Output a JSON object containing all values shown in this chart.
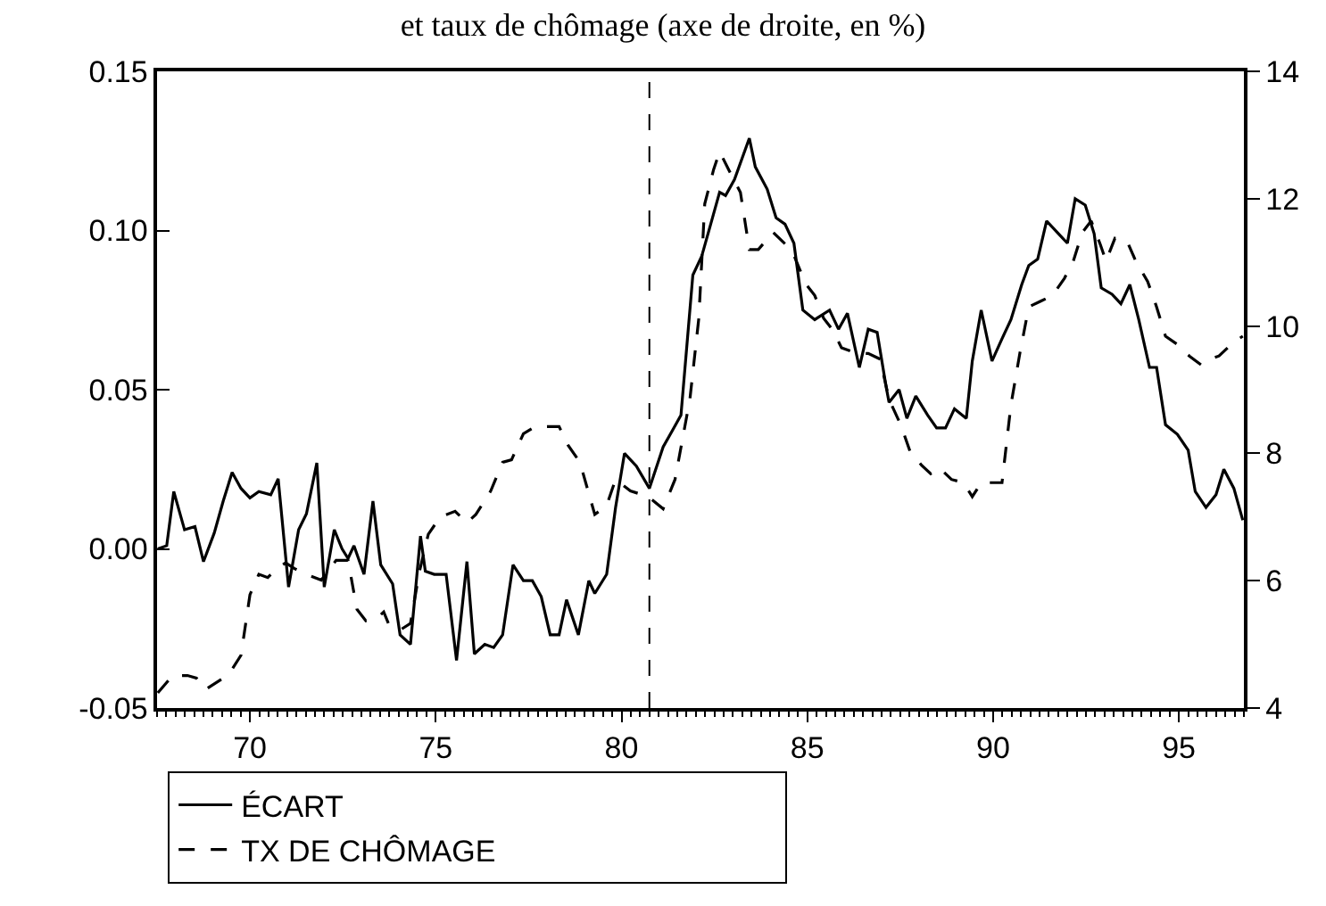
{
  "chart_data": {
    "type": "line",
    "title": "et taux de chômage (axe de droite, en %)",
    "xlim": [
      67.5,
      96.75
    ],
    "xticks": [
      70,
      75,
      80,
      85,
      90,
      95
    ],
    "ylim": [
      -0.05,
      0.15
    ],
    "yticks": [
      {
        "value": -0.05,
        "label": "-0.05"
      },
      {
        "value": 0,
        "label": "0.00"
      },
      {
        "value": 0.05,
        "label": "0.05"
      },
      {
        "value": 0.1,
        "label": "0.10"
      },
      {
        "value": 0.15,
        "label": "0.15"
      }
    ],
    "y2lim": [
      4,
      14
    ],
    "y2ticks": [
      4,
      6,
      8,
      10,
      12,
      14
    ],
    "grid": false,
    "legend": "bottom",
    "ref_lines": [
      {
        "axis": "x",
        "value": 80.75,
        "color": "#000000",
        "line_style": "dashed"
      }
    ],
    "series": [
      {
        "name": "ÉCART",
        "color": "#000000",
        "line_style": "solid",
        "axis": "y",
        "x": [
          67.52,
          67.76,
          67.95,
          68.24,
          68.52,
          68.75,
          69.04,
          69.28,
          69.52,
          69.76,
          70.0,
          70.24,
          70.56,
          70.76,
          71.04,
          71.31,
          71.52,
          71.8,
          72.0,
          72.27,
          72.48,
          72.64,
          72.8,
          73.07,
          73.31,
          73.52,
          73.84,
          74.04,
          74.32,
          74.59,
          74.72,
          74.96,
          75.28,
          75.56,
          75.84,
          76.04,
          76.32,
          76.56,
          76.8,
          77.08,
          77.36,
          77.6,
          77.84,
          78.08,
          78.32,
          78.52,
          78.84,
          79.12,
          79.28,
          79.6,
          79.84,
          80.08,
          80.4,
          80.75,
          81.12,
          81.36,
          81.6,
          81.92,
          82.16,
          82.4,
          82.64,
          82.8,
          83.04,
          83.44,
          83.6,
          83.92,
          84.16,
          84.4,
          84.64,
          84.88,
          85.2,
          85.6,
          85.84,
          86.08,
          86.4,
          86.64,
          86.88,
          87.12,
          87.2,
          87.47,
          87.68,
          87.92,
          88.24,
          88.48,
          88.72,
          88.96,
          89.28,
          89.44,
          89.68,
          89.97,
          90.24,
          90.48,
          90.77,
          90.96,
          91.2,
          91.44,
          91.76,
          92.0,
          92.21,
          92.48,
          92.72,
          92.91,
          93.2,
          93.44,
          93.68,
          93.92,
          94.21,
          94.4,
          94.64,
          94.96,
          95.25,
          95.44,
          95.73,
          96.0,
          96.21,
          96.48,
          96.72
        ],
        "values": [
          0.0,
          0.001,
          0.018,
          0.006,
          0.007,
          -0.004,
          0.005,
          0.015,
          0.024,
          0.019,
          0.016,
          0.018,
          0.017,
          0.022,
          -0.012,
          0.006,
          0.011,
          0.027,
          -0.012,
          0.006,
          0.0,
          -0.003,
          0.001,
          -0.008,
          0.015,
          -0.005,
          -0.011,
          -0.027,
          -0.03,
          0.004,
          -0.007,
          -0.008,
          -0.008,
          -0.035,
          -0.004,
          -0.033,
          -0.03,
          -0.031,
          -0.027,
          -0.005,
          -0.01,
          -0.01,
          -0.015,
          -0.027,
          -0.027,
          -0.016,
          -0.027,
          -0.01,
          -0.014,
          -0.008,
          0.013,
          0.03,
          0.026,
          0.019,
          0.032,
          0.037,
          0.042,
          0.086,
          0.092,
          0.102,
          0.112,
          0.111,
          0.116,
          0.129,
          0.12,
          0.113,
          0.104,
          0.102,
          0.096,
          0.075,
          0.072,
          0.075,
          0.069,
          0.074,
          0.057,
          0.069,
          0.068,
          0.051,
          0.046,
          0.05,
          0.041,
          0.048,
          0.042,
          0.038,
          0.038,
          0.044,
          0.041,
          0.059,
          0.075,
          0.059,
          0.066,
          0.072,
          0.083,
          0.089,
          0.091,
          0.103,
          0.099,
          0.096,
          0.11,
          0.108,
          0.099,
          0.082,
          0.08,
          0.077,
          0.083,
          0.072,
          0.057,
          0.057,
          0.039,
          0.036,
          0.031,
          0.018,
          0.013,
          0.017,
          0.025,
          0.019,
          0.009
        ]
      },
      {
        "name": "TX DE CHÔMAGE",
        "color": "#000000",
        "line_style": "dashed",
        "axis": "y2",
        "x": [
          67.52,
          67.92,
          68.32,
          68.56,
          68.8,
          69.28,
          69.52,
          69.76,
          70.0,
          70.24,
          70.48,
          70.72,
          70.96,
          71.2,
          71.52,
          71.92,
          72.32,
          72.64,
          72.88,
          73.12,
          73.44,
          73.6,
          73.76,
          74.08,
          74.32,
          74.56,
          74.8,
          75.12,
          75.52,
          75.84,
          76.08,
          76.48,
          76.8,
          77.04,
          77.36,
          77.68,
          78.32,
          78.56,
          78.88,
          79.28,
          79.6,
          79.84,
          80.24,
          80.72,
          81.12,
          81.44,
          81.84,
          82.08,
          82.24,
          82.48,
          82.64,
          82.88,
          83.2,
          83.44,
          83.68,
          84.08,
          84.4,
          84.64,
          84.96,
          85.2,
          85.44,
          85.68,
          85.92,
          86.32,
          86.64,
          86.96,
          87.2,
          87.52,
          87.76,
          88.08,
          88.32,
          88.56,
          88.88,
          89.2,
          89.44,
          89.68,
          90.24,
          90.48,
          90.72,
          90.96,
          91.28,
          91.6,
          91.92,
          92.16,
          92.4,
          92.64,
          92.88,
          93.04,
          93.28,
          93.6,
          93.84,
          94.16,
          94.4,
          94.64,
          94.96,
          95.28,
          95.6,
          95.84,
          96.08,
          96.48,
          96.72
        ],
        "values": [
          4.24,
          4.51,
          4.51,
          4.47,
          4.29,
          4.47,
          4.61,
          4.83,
          5.78,
          6.1,
          6.05,
          6.19,
          6.28,
          6.19,
          6.1,
          6.01,
          6.32,
          6.32,
          5.55,
          5.37,
          5.42,
          5.51,
          5.28,
          5.24,
          5.33,
          6.14,
          6.73,
          7.0,
          7.09,
          6.91,
          7.04,
          7.41,
          7.86,
          7.9,
          8.31,
          8.42,
          8.42,
          8.13,
          7.86,
          7.04,
          7.18,
          7.59,
          7.41,
          7.32,
          7.13,
          7.59,
          8.85,
          10.12,
          11.92,
          12.46,
          12.74,
          12.46,
          12.1,
          11.2,
          11.2,
          11.47,
          11.29,
          11.11,
          10.66,
          10.48,
          10.12,
          9.94,
          9.66,
          9.57,
          9.57,
          9.48,
          8.85,
          8.44,
          8.04,
          7.81,
          7.68,
          7.77,
          7.59,
          7.54,
          7.32,
          7.54,
          7.54,
          8.76,
          9.57,
          10.3,
          10.39,
          10.48,
          10.75,
          11.02,
          11.47,
          11.65,
          11.29,
          11.02,
          11.38,
          11.34,
          11.02,
          10.7,
          10.3,
          9.84,
          9.71,
          9.53,
          9.39,
          9.48,
          9.53,
          9.75,
          9.84
        ]
      }
    ]
  }
}
